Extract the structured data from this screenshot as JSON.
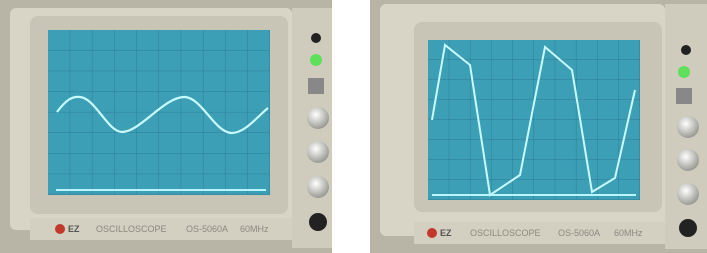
{
  "scopes": [
    {
      "brand": "EZ",
      "label": "OSCILLOSCOPE",
      "model": "OS-5060A",
      "bandwidth": "60MHz"
    },
    {
      "brand": "EZ",
      "label": "OSCILLOSCOPE",
      "model": "OS-5060A",
      "bandwidth": "60MHz"
    }
  ]
}
